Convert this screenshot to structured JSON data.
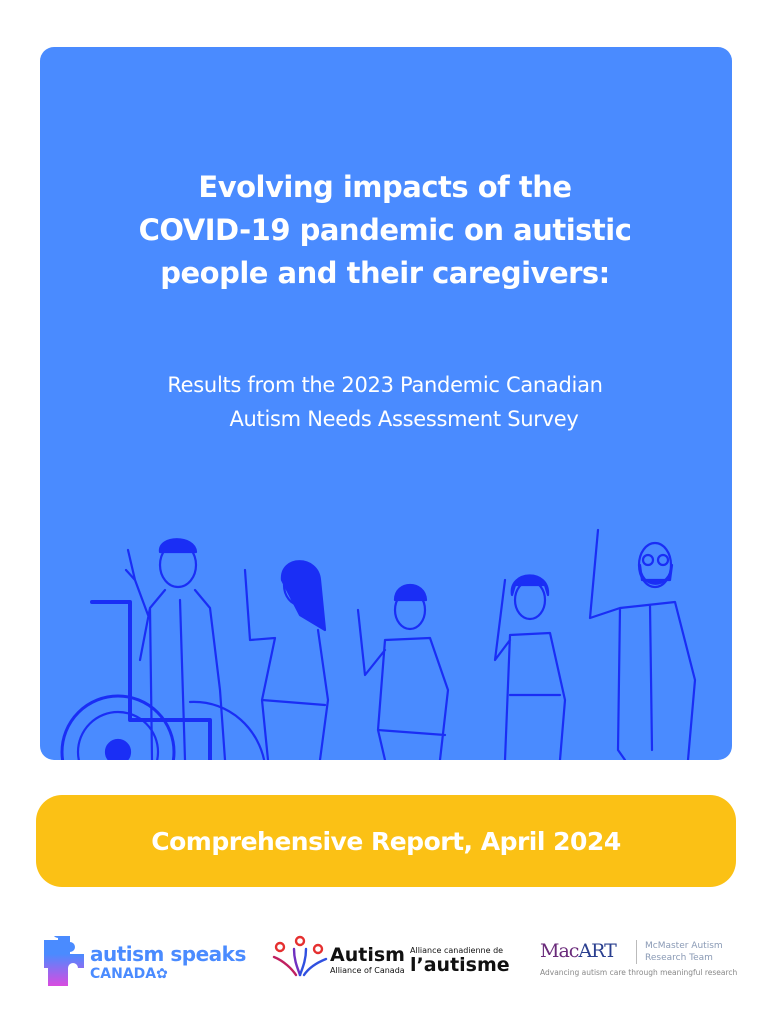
{
  "cover": {
    "title_lines": [
      "Evolving impacts of the",
      "COVID-19 pandemic on autistic",
      "people and their caregivers:"
    ],
    "subtitle_lines": [
      "Results from the 2023 Pandemic Canadian",
      "Autism Needs Assessment Survey"
    ],
    "report_label": "Comprehensive Report, April 2024"
  },
  "colors": {
    "panel": "#4a8bff",
    "illustration_line": "#1a2ef5",
    "banner": "#fbc115"
  },
  "logos": {
    "autism_speaks": {
      "name": "autism speaks",
      "sub": "CANADA"
    },
    "autism_alliance": {
      "name": "Autism",
      "sub": "Alliance of Canada",
      "fr_top": "Alliance canadienne de",
      "fr_main": "l’autisme"
    },
    "macart": {
      "name_a": "Mac",
      "name_b": "ART",
      "team": [
        "McMaster Autism",
        "Research Team"
      ],
      "tagline": "Advancing autism care through meaningful research"
    }
  }
}
